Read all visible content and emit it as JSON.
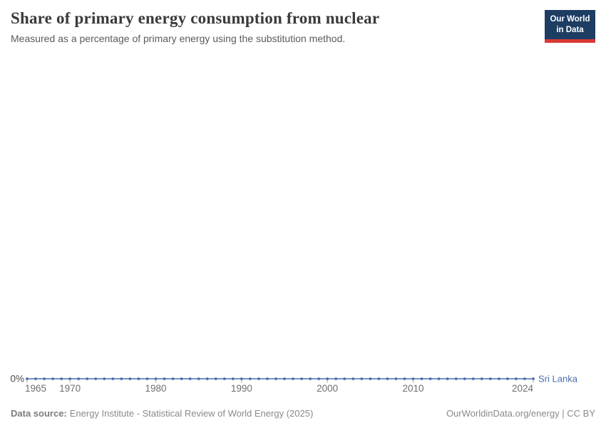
{
  "header": {
    "title": "Share of primary energy consumption from nuclear",
    "subtitle": "Measured as a percentage of primary energy using the substitution method."
  },
  "logo": {
    "line1": "Our World",
    "line2": "in Data",
    "bg_color": "#1d3d63",
    "accent_color": "#d73a34"
  },
  "chart_data": {
    "type": "line",
    "title": "Share of primary energy consumption from nuclear",
    "xlabel": "",
    "ylabel": "",
    "grid": false,
    "markers": true,
    "legend_position": "end-of-line",
    "ylim": [
      0,
      0
    ],
    "y_tick_labels": [
      "0%"
    ],
    "x_ticks": [
      1965,
      1970,
      1980,
      1990,
      2000,
      2010,
      2024
    ],
    "x_tick_labels": [
      "1965",
      "1970",
      "1980",
      "1990",
      "2000",
      "2010",
      "2024"
    ],
    "x": [
      1965,
      1966,
      1967,
      1968,
      1969,
      1970,
      1971,
      1972,
      1973,
      1974,
      1975,
      1976,
      1977,
      1978,
      1979,
      1980,
      1981,
      1982,
      1983,
      1984,
      1985,
      1986,
      1987,
      1988,
      1989,
      1990,
      1991,
      1992,
      1993,
      1994,
      1995,
      1996,
      1997,
      1998,
      1999,
      2000,
      2001,
      2002,
      2003,
      2004,
      2005,
      2006,
      2007,
      2008,
      2009,
      2010,
      2011,
      2012,
      2013,
      2014,
      2015,
      2016,
      2017,
      2018,
      2019,
      2020,
      2021,
      2022,
      2023,
      2024
    ],
    "series": [
      {
        "name": "Sri Lanka",
        "color": "#4c6ead",
        "values": [
          0,
          0,
          0,
          0,
          0,
          0,
          0,
          0,
          0,
          0,
          0,
          0,
          0,
          0,
          0,
          0,
          0,
          0,
          0,
          0,
          0,
          0,
          0,
          0,
          0,
          0,
          0,
          0,
          0,
          0,
          0,
          0,
          0,
          0,
          0,
          0,
          0,
          0,
          0,
          0,
          0,
          0,
          0,
          0,
          0,
          0,
          0,
          0,
          0,
          0,
          0,
          0,
          0,
          0,
          0,
          0,
          0,
          0,
          0,
          0
        ]
      }
    ]
  },
  "footer": {
    "source_label": "Data source:",
    "source_text": "Energy Institute - Statistical Review of World Energy (2025)",
    "attribution": "OurWorldinData.org/energy | CC BY"
  }
}
